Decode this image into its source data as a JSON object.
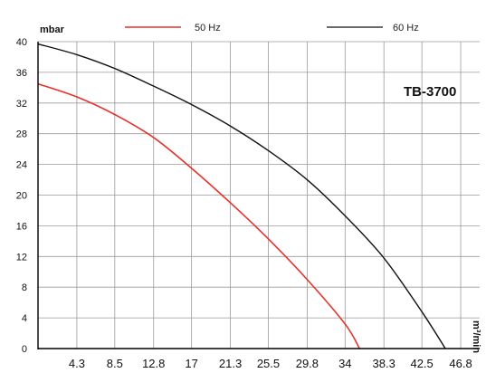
{
  "chart_data": {
    "type": "line",
    "title": "TB-3700",
    "ylabel": "mbar",
    "xlabel": "m³/min",
    "xlim": [
      0,
      48.9
    ],
    "ylim": [
      0,
      40
    ],
    "x_ticks": [
      4.3,
      8.5,
      12.8,
      17,
      21.3,
      25.5,
      29.8,
      34,
      38.3,
      42.5,
      46.8
    ],
    "x_tick_labels": [
      "4.3",
      "8.5",
      "12.8",
      "17",
      "21.3",
      "25.5",
      "29.8",
      "34",
      "38.3",
      "42.5",
      "46.8"
    ],
    "y_ticks": [
      0,
      4,
      8,
      12,
      16,
      20,
      24,
      28,
      32,
      36,
      40
    ],
    "grid": true,
    "legend_position": "top",
    "series": [
      {
        "name": "50 Hz",
        "color": "#e8302a",
        "points": [
          [
            0,
            34.5
          ],
          [
            4.3,
            32.8
          ],
          [
            8.5,
            30.5
          ],
          [
            12.8,
            27.5
          ],
          [
            17,
            23.5
          ],
          [
            21.3,
            19
          ],
          [
            25.5,
            14.3
          ],
          [
            29.8,
            9
          ],
          [
            34,
            3.2
          ],
          [
            35.6,
            0
          ]
        ]
      },
      {
        "name": "60 Hz",
        "color": "#111111",
        "points": [
          [
            0,
            39.7
          ],
          [
            4.3,
            38.3
          ],
          [
            8.5,
            36.5
          ],
          [
            12.8,
            34.2
          ],
          [
            17,
            31.8
          ],
          [
            21.3,
            29
          ],
          [
            25.5,
            25.8
          ],
          [
            29.8,
            22
          ],
          [
            34,
            17.3
          ],
          [
            38.3,
            11.8
          ],
          [
            42.5,
            4.8
          ],
          [
            45.1,
            0
          ]
        ]
      }
    ]
  }
}
